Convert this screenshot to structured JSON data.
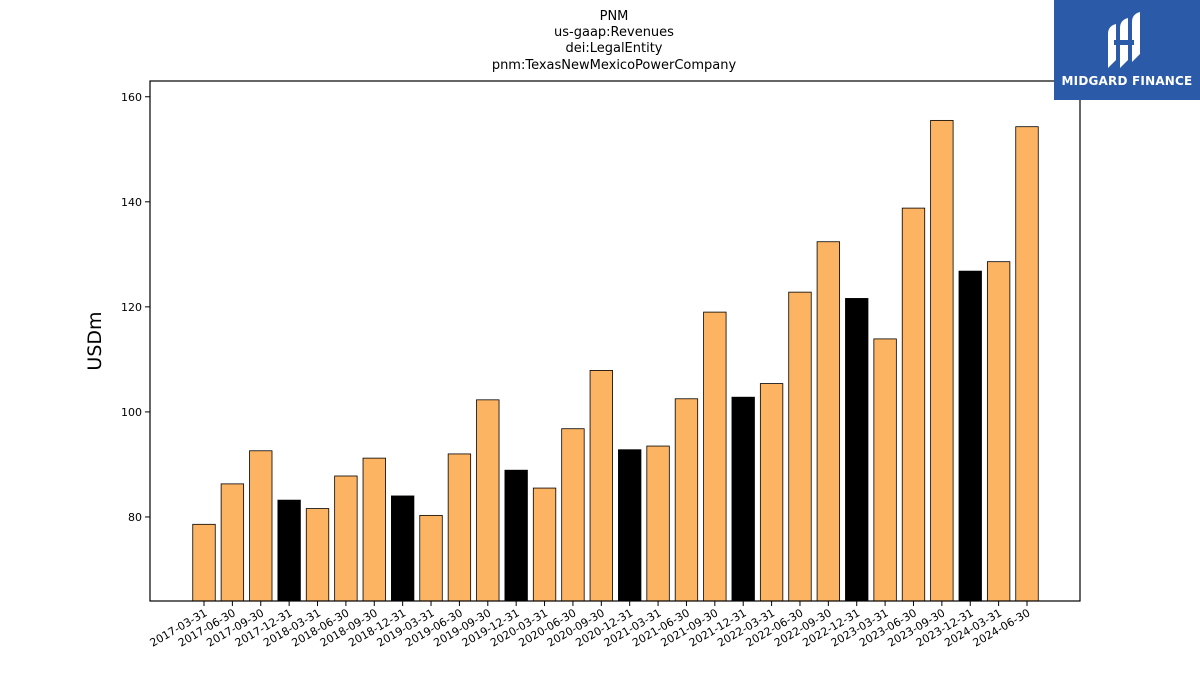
{
  "logo": {
    "text": "MIDGARD FINANCE",
    "background": "#2b5aa8"
  },
  "chart_data": {
    "type": "bar",
    "title_lines": [
      "PNM",
      "us-gaap:Revenues",
      "dei:LegalEntity",
      "pnm:TexasNewMexicoPowerCompany"
    ],
    "xlabel": "",
    "ylabel": "USDm",
    "ylim": [
      64,
      163
    ],
    "yticks": [
      80,
      100,
      120,
      140,
      160
    ],
    "quarter_color": "#fdb462",
    "q4_color": "#000000",
    "categories": [
      "2017-03-31",
      "2017-06-30",
      "2017-09-30",
      "2017-12-31",
      "2018-03-31",
      "2018-06-30",
      "2018-09-30",
      "2018-12-31",
      "2019-03-31",
      "2019-06-30",
      "2019-09-30",
      "2019-12-31",
      "2020-03-31",
      "2020-06-30",
      "2020-09-30",
      "2020-12-31",
      "2021-03-31",
      "2021-06-30",
      "2021-09-30",
      "2021-12-31",
      "2022-03-31",
      "2022-06-30",
      "2022-09-30",
      "2022-12-31",
      "2023-03-31",
      "2023-06-30",
      "2023-09-30",
      "2023-12-31",
      "2024-03-31",
      "2024-06-30"
    ],
    "values": [
      78.6,
      86.3,
      92.6,
      83.2,
      81.6,
      87.8,
      91.2,
      84.0,
      80.3,
      92.0,
      102.3,
      88.9,
      85.5,
      96.8,
      107.9,
      92.8,
      93.5,
      102.5,
      119.0,
      102.8,
      105.4,
      122.8,
      132.4,
      121.6,
      113.9,
      138.8,
      155.5,
      126.8,
      128.6,
      154.3
    ],
    "grid": false,
    "legend": "none"
  }
}
